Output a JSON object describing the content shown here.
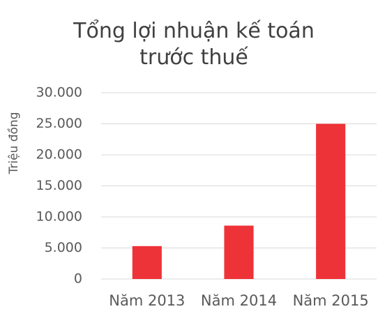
{
  "chart_data": {
    "type": "bar",
    "title": "Tổng lợi nhuận kế toán trước thuế",
    "y_label": "Triệu đồng",
    "categories": [
      "Năm 2013",
      "Năm 2014",
      "Năm 2015"
    ],
    "values": [
      5300,
      8600,
      25000
    ],
    "color": "#ee3338",
    "ylim": [
      0,
      30000
    ],
    "yticks": [
      0,
      {
        "value": 5000,
        "label": "5.000"
      },
      {
        "value": 10000,
        "label": "10.000"
      },
      {
        "value": 15000,
        "label": "15.000"
      },
      {
        "value": 20000,
        "label": "20.000"
      },
      {
        "value": 25000,
        "label": "25.000"
      },
      {
        "value": 30000,
        "label": "30.000"
      }
    ],
    "grid": true
  }
}
